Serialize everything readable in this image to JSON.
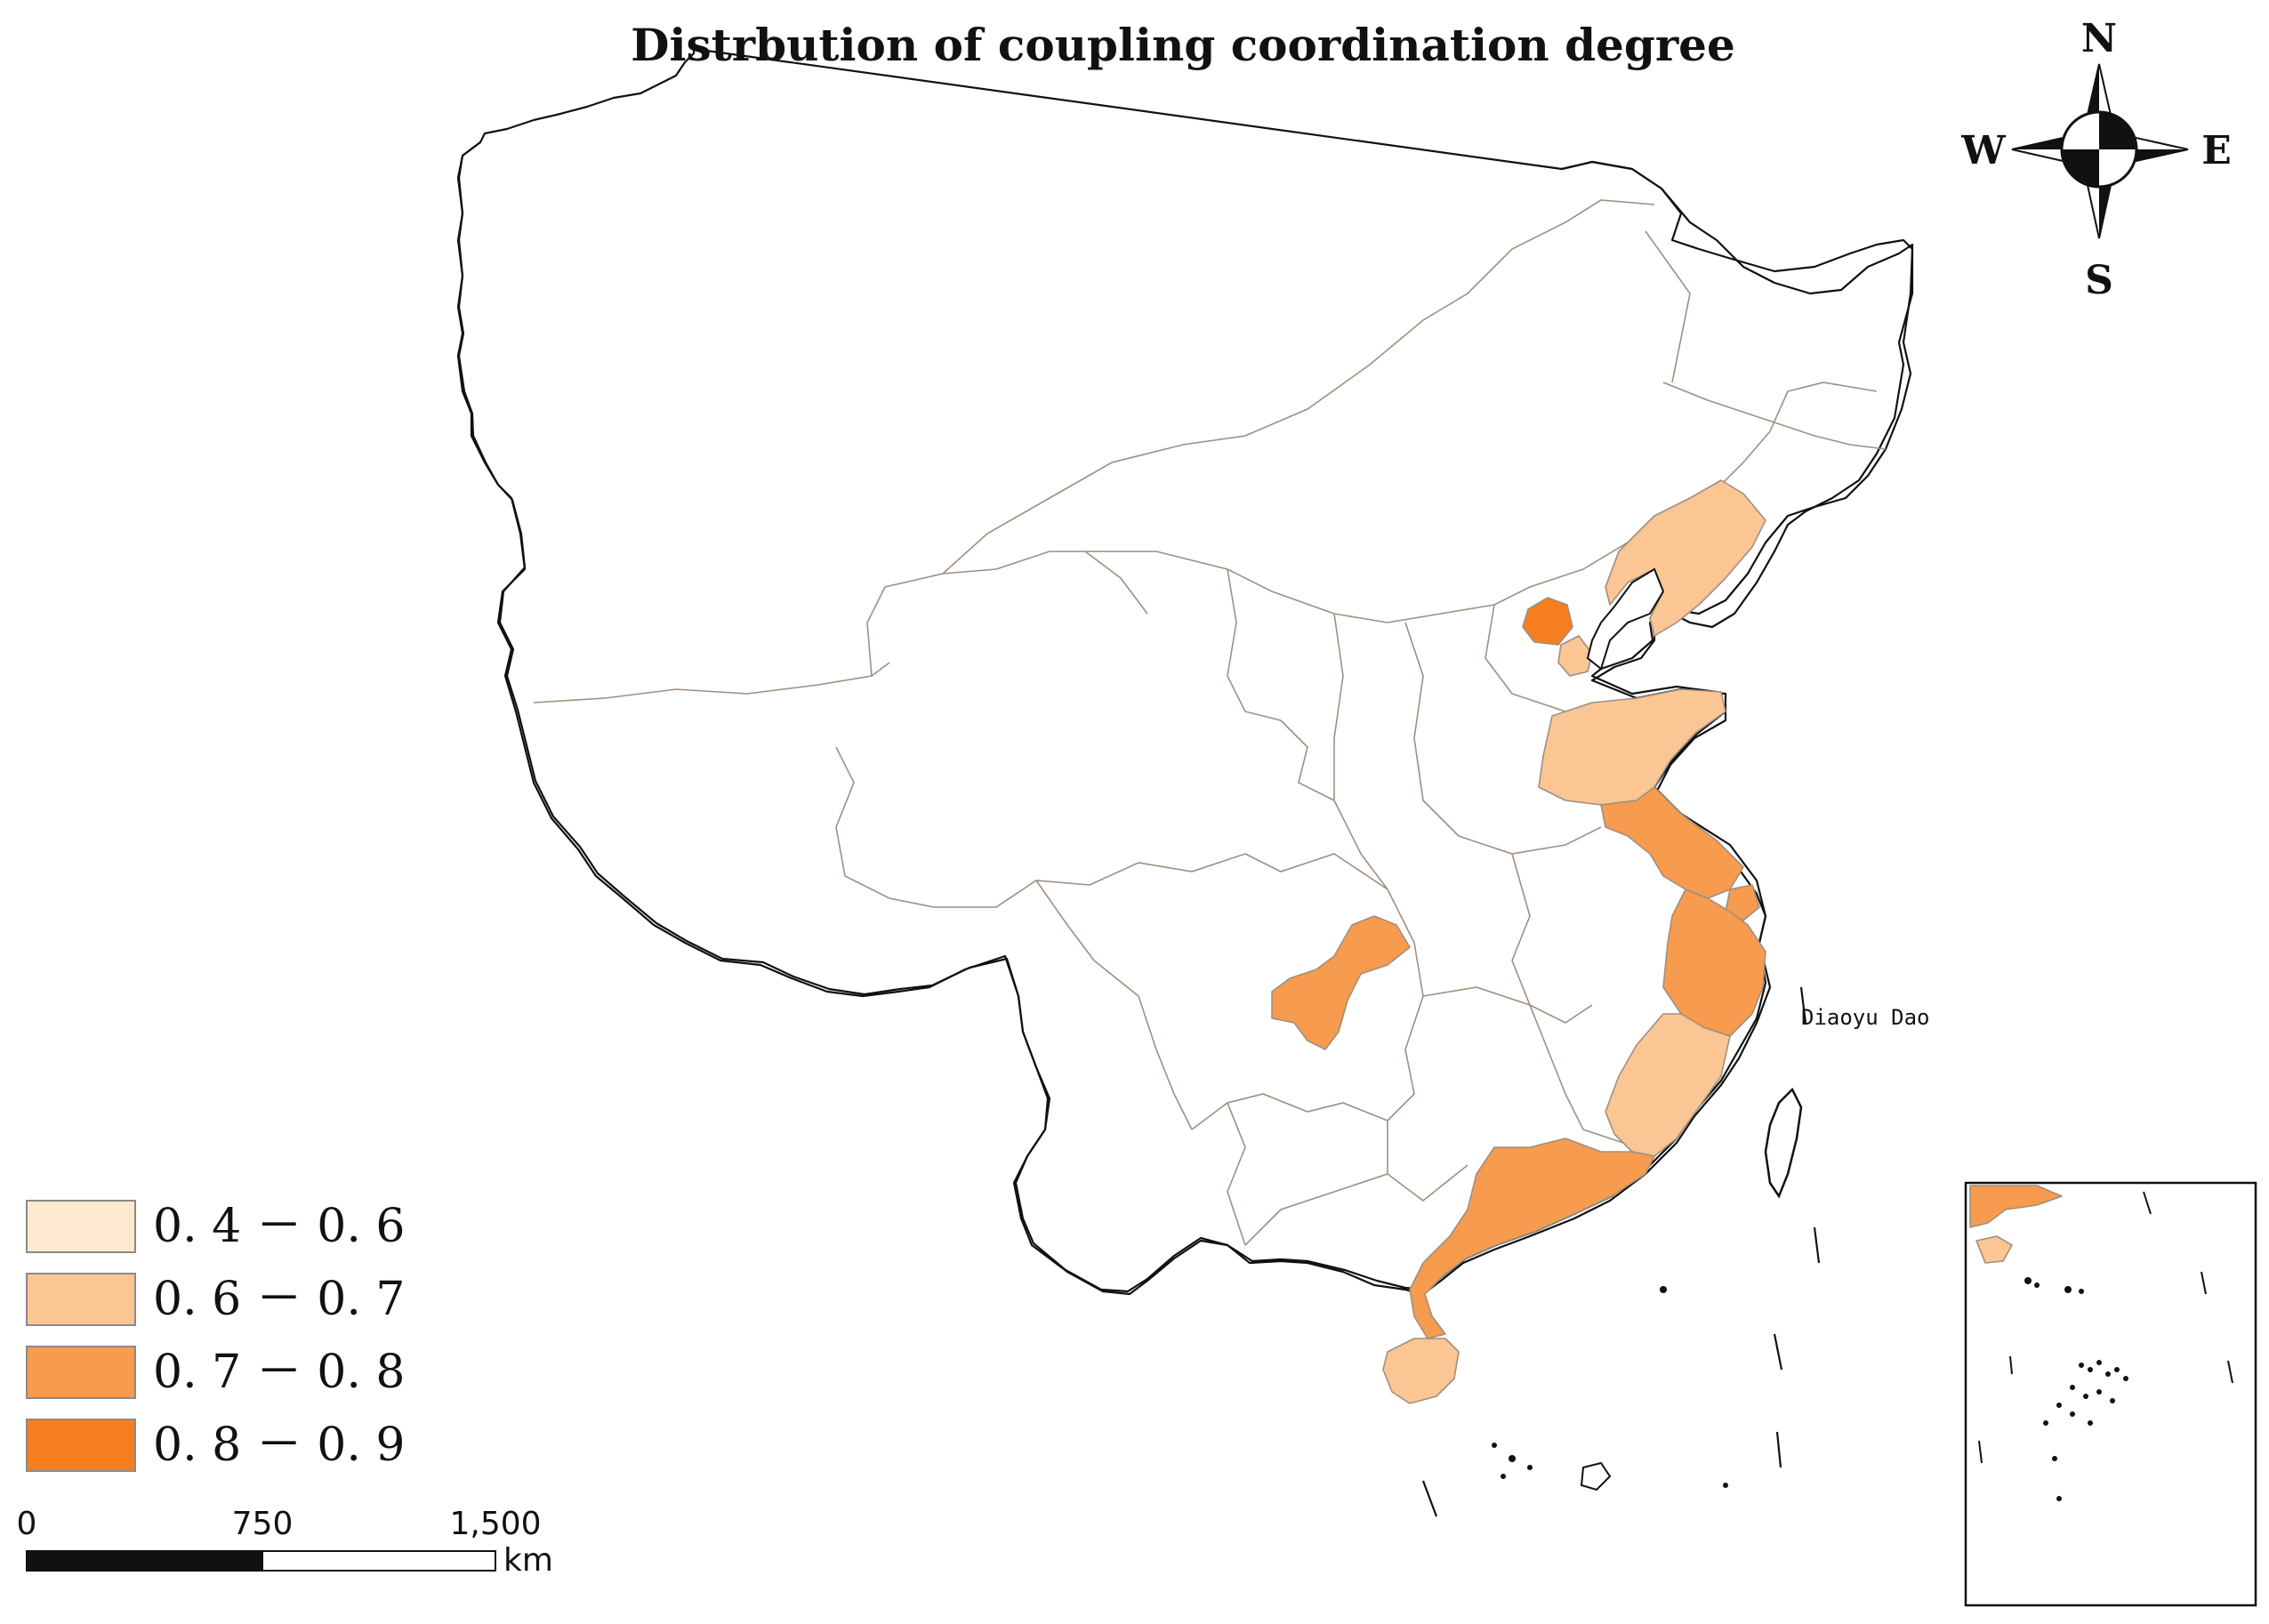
{
  "title": "Distrbution of coupling coordination degree",
  "compass": {
    "north": "N",
    "south": "S",
    "east": "E",
    "west": "W"
  },
  "colors": {
    "class_1": "#fde9d0",
    "class_2": "#fbc594",
    "class_3": "#f79b4f",
    "class_4": "#f67e1f"
  },
  "legend": [
    {
      "label": "0. 4 － 0. 6",
      "color": "#fde9d0"
    },
    {
      "label": "0. 6 － 0. 7",
      "color": "#fbc594"
    },
    {
      "label": "0. 7 － 0. 8",
      "color": "#f79b4f"
    },
    {
      "label": "0. 8 － 0. 9",
      "color": "#f67e1f"
    }
  ],
  "scale_bar": {
    "ticks": [
      "0",
      "750",
      "1,500"
    ],
    "unit": "km"
  },
  "labels": {
    "island": "Diaoyu Dao"
  },
  "regions": [
    {
      "id": "beijing",
      "class": 4
    },
    {
      "id": "tianjin",
      "class": 2
    },
    {
      "id": "liaoning",
      "class": 2
    },
    {
      "id": "shandong",
      "class": 2
    },
    {
      "id": "fujian",
      "class": 2
    },
    {
      "id": "hainan",
      "class": 2
    },
    {
      "id": "jiangsu",
      "class": 3
    },
    {
      "id": "shanghai",
      "class": 3
    },
    {
      "id": "zhejiang",
      "class": 3
    },
    {
      "id": "guangdong",
      "class": 3
    },
    {
      "id": "chongqing",
      "class": 3
    }
  ]
}
